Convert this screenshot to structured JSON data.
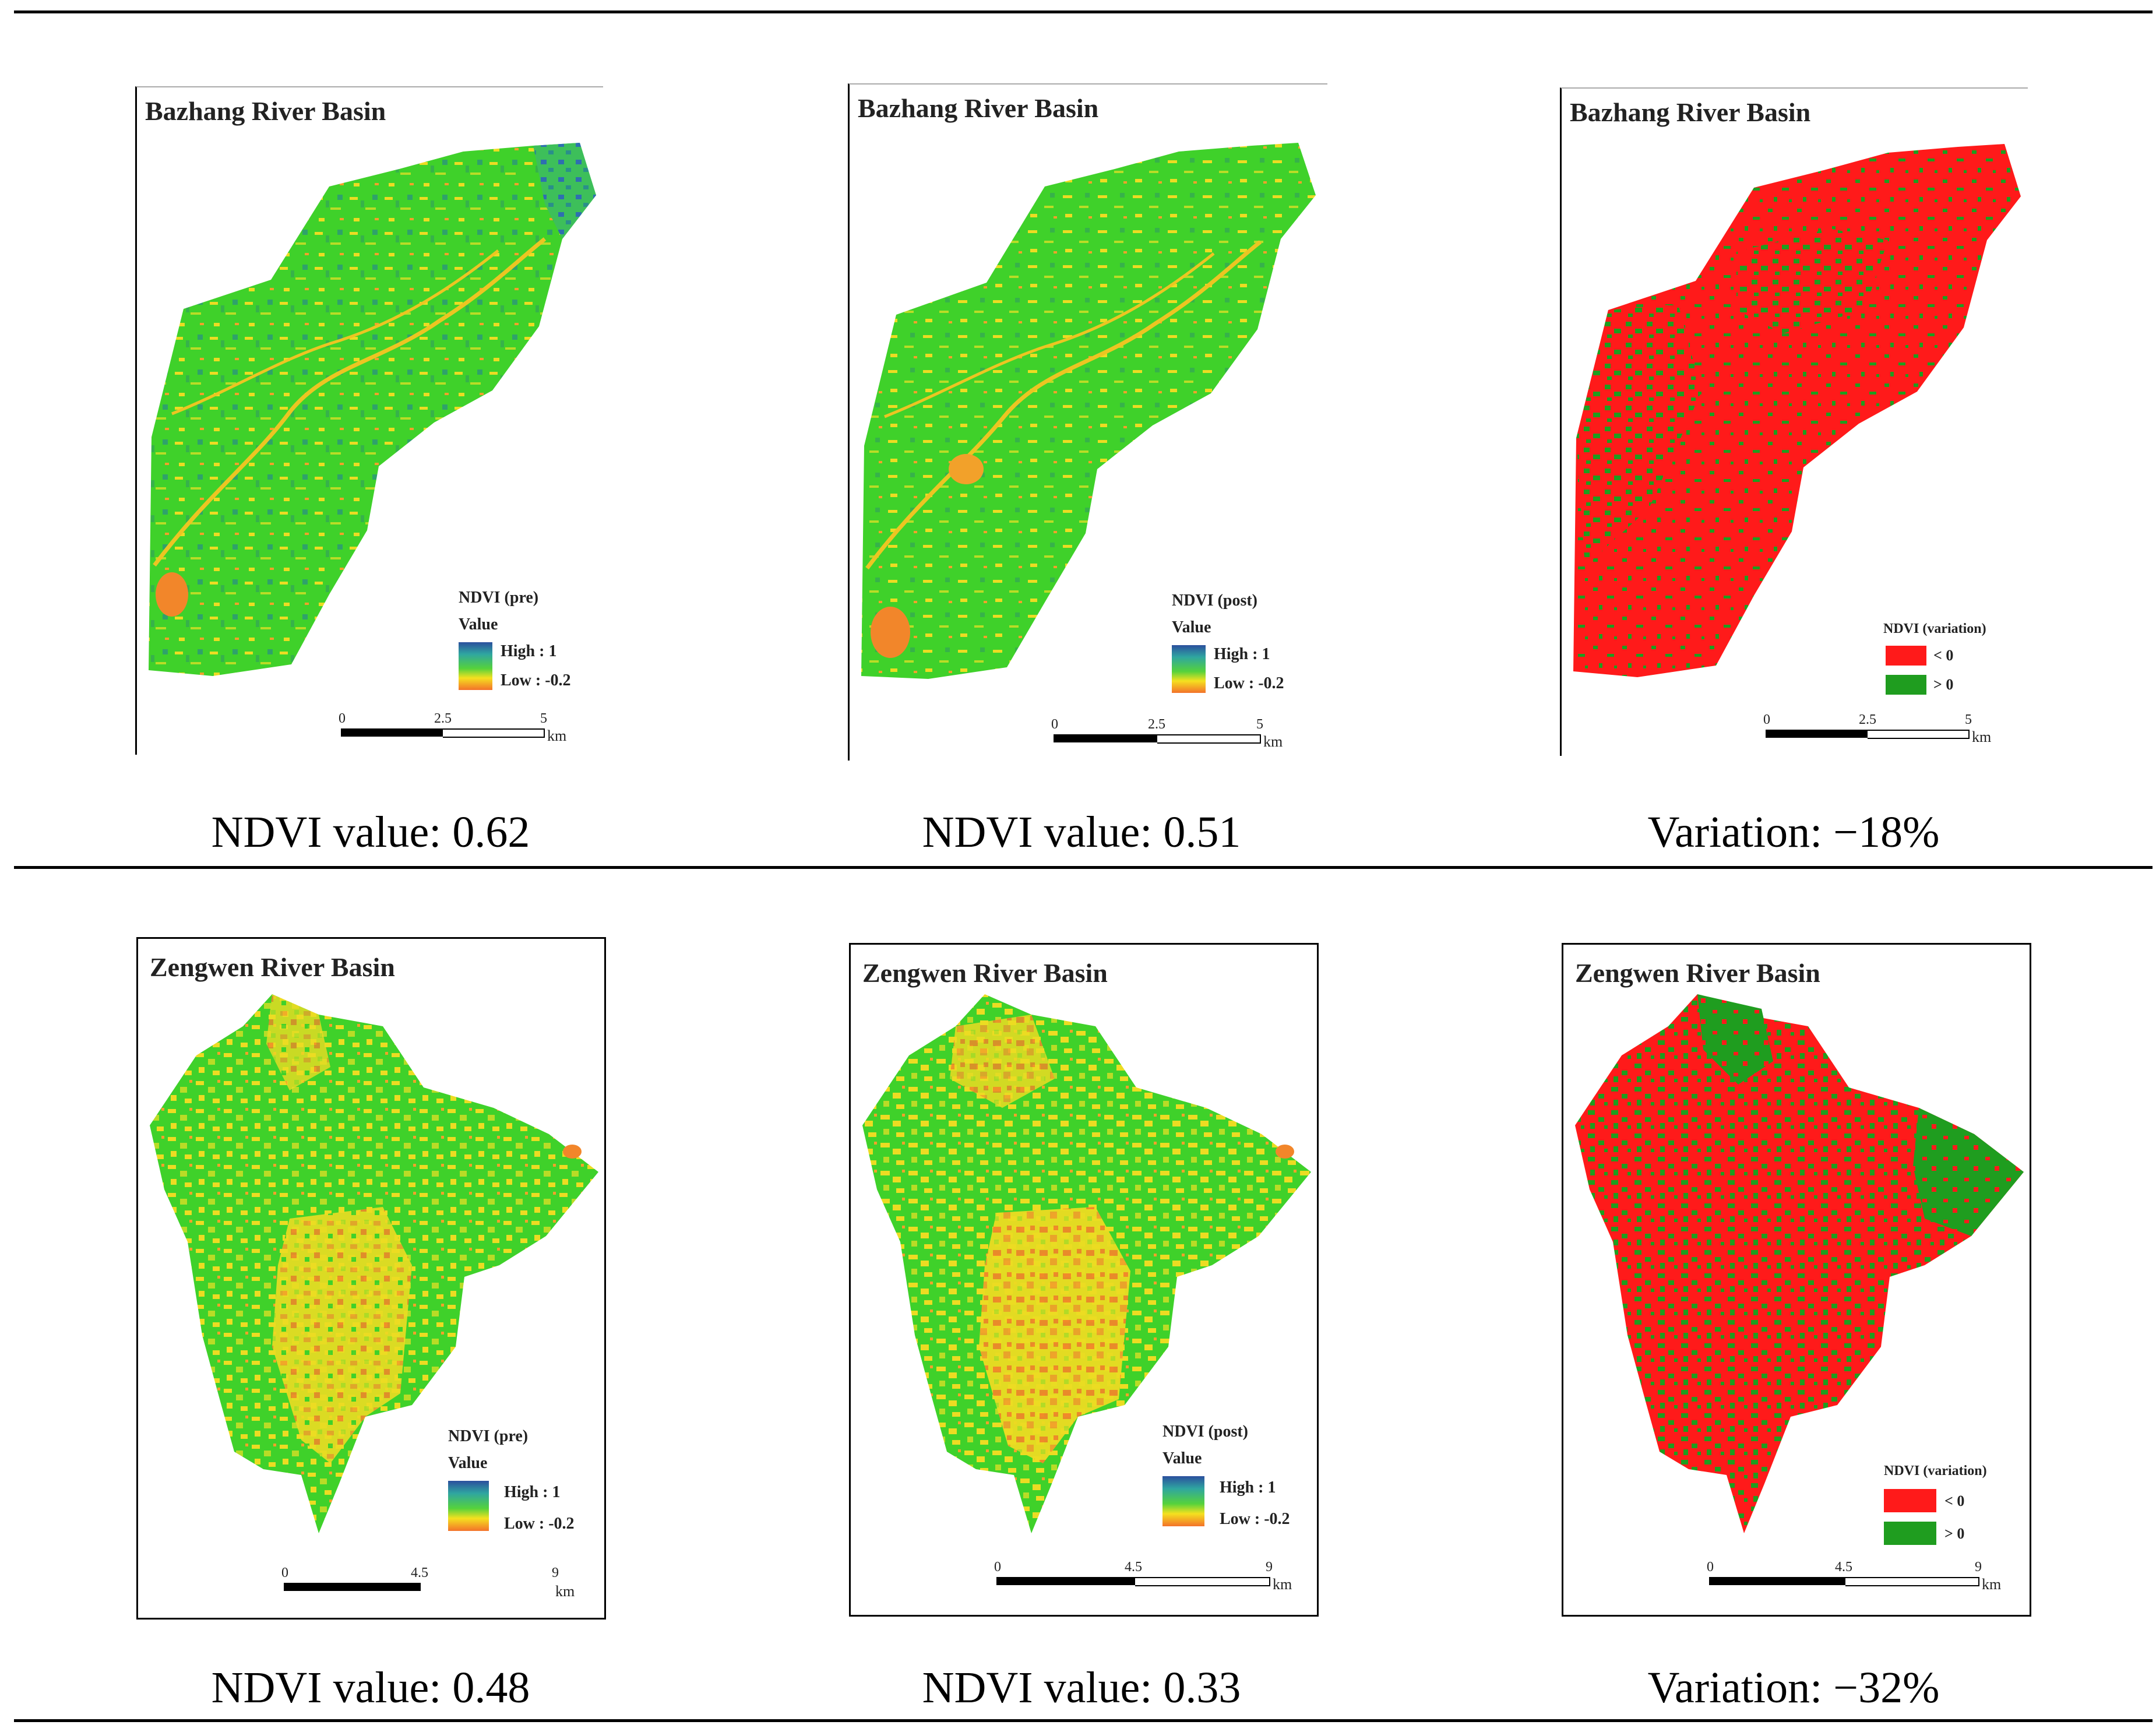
{
  "colors": {
    "ndvi_green": "#3fd12a",
    "ndvi_yellow": "#ecdc22",
    "ndvi_orange": "#f28a2a",
    "ndvi_blue": "#2e6fb0",
    "decrease_red": "#ff1a1a",
    "increase_green": "#1f9d1f"
  },
  "rows": [
    {
      "panels": [
        {
          "title": "Bazhang River Basin",
          "legend_type": "ramp",
          "legend_title": "NDVI (pre)",
          "legend_value": "Value",
          "legend_high": "High : 1",
          "legend_low": "Low : -0.2",
          "scale": {
            "t0": "0",
            "t1": "2.5",
            "t2": "5",
            "unit": "km"
          }
        },
        {
          "title": "Bazhang River Basin",
          "legend_type": "ramp",
          "legend_title": "NDVI (post)",
          "legend_value": "Value",
          "legend_high": "High : 1",
          "legend_low": "Low : -0.2",
          "scale": {
            "t0": "0",
            "t1": "2.5",
            "t2": "5",
            "unit": "km"
          }
        },
        {
          "title": "Bazhang River Basin",
          "legend_type": "classes",
          "legend_title": "NDVI (variation)",
          "legend_lt": "< 0",
          "legend_gt": "> 0",
          "scale": {
            "t0": "0",
            "t1": "2.5",
            "t2": "5",
            "unit": "km"
          }
        }
      ],
      "captions": [
        "NDVI value: 0.62",
        "NDVI value: 0.51",
        "Variation: −18%"
      ]
    },
    {
      "panels": [
        {
          "title": "Zengwen River Basin",
          "legend_type": "ramp",
          "legend_title": "NDVI (pre)",
          "legend_value": "Value",
          "legend_high": "High : 1",
          "legend_low": "Low : -0.2",
          "scale": {
            "t0": "0",
            "t1": "4.5",
            "t2": "9",
            "unit": "km"
          }
        },
        {
          "title": "Zengwen River Basin",
          "legend_type": "ramp",
          "legend_title": "NDVI (post)",
          "legend_value": "Value",
          "legend_high": "High : 1",
          "legend_low": "Low : -0.2",
          "scale": {
            "t0": "0",
            "t1": "4.5",
            "t2": "9",
            "unit": "km"
          }
        },
        {
          "title": "Zengwen River Basin",
          "legend_type": "classes",
          "legend_title": "NDVI (variation)",
          "legend_lt": "< 0",
          "legend_gt": "> 0",
          "scale": {
            "t0": "0",
            "t1": "4.5",
            "t2": "9",
            "unit": "km"
          }
        }
      ],
      "captions": [
        "NDVI value: 0.48",
        "NDVI value: 0.33",
        "Variation: −32%"
      ]
    }
  ]
}
